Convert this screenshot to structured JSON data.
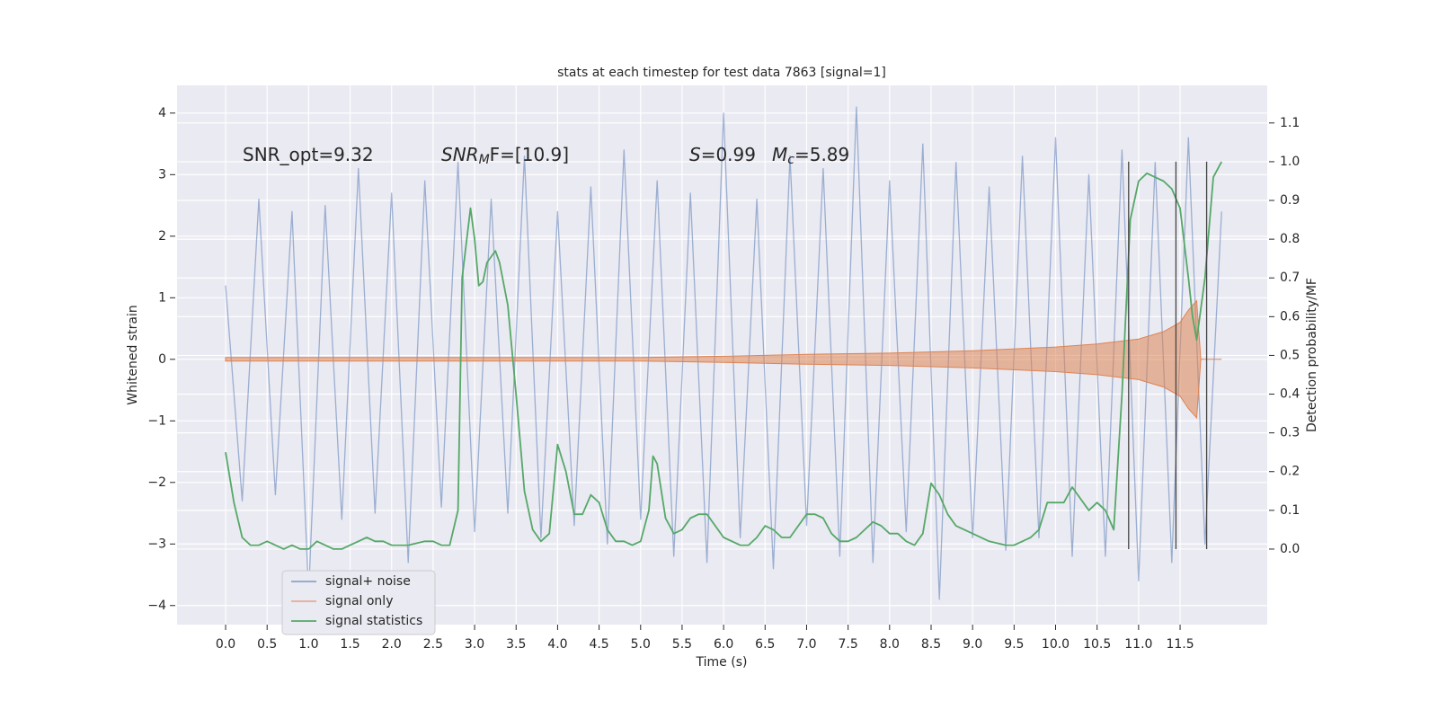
{
  "chart_data": {
    "type": "line",
    "title": "stats at each timestep for test data 7863 [signal=1]",
    "xlabel": "Time (s)",
    "ylabel": "Whitened strain",
    "y2label": "Detection probability/MF",
    "xlim": [
      -0.585,
      12.55
    ],
    "ylim": [
      -4.31,
      4.45
    ],
    "y2lim": [
      -0.195,
      1.197
    ],
    "xticks": [
      {
        "value": 0,
        "label": "0.0"
      },
      0.5,
      {
        "value": 1,
        "label": "1.0"
      },
      1.5,
      {
        "value": 2,
        "label": "2.0"
      },
      2.5,
      {
        "value": 3,
        "label": "3.0"
      },
      3.5,
      {
        "value": 4,
        "label": "4.0"
      },
      4.5,
      {
        "value": 5,
        "label": "5.0"
      },
      5.5,
      {
        "value": 6,
        "label": "6.0"
      },
      6.5,
      {
        "value": 7,
        "label": "7.0"
      },
      7.5,
      {
        "value": 8,
        "label": "8.0"
      },
      8.5,
      {
        "value": 9,
        "label": "9.0"
      },
      9.5,
      {
        "value": 10,
        "label": "10.0"
      },
      10.5,
      {
        "value": 11,
        "label": "11.0"
      },
      11.5
    ],
    "yticks": [
      {
        "value": -4,
        "label": "−4"
      },
      {
        "value": -3,
        "label": "−3"
      },
      {
        "value": -2,
        "label": "−2"
      },
      {
        "value": -1,
        "label": "−1"
      },
      0,
      1,
      2,
      3,
      4
    ],
    "y2ticks": [
      {
        "value": 0,
        "label": "0.0"
      },
      0.1,
      0.2,
      0.3,
      0.4,
      0.5,
      0.6,
      0.7,
      0.8,
      0.9,
      {
        "value": 1,
        "label": "1.0"
      },
      1.1
    ],
    "grid": true,
    "series": [
      {
        "name": "signal+ noise",
        "color": "#4c72b0",
        "kind": "line",
        "x": [
          0,
          0.2,
          0.4,
          0.6,
          0.8,
          1.0,
          1.2,
          1.4,
          1.6,
          1.8,
          2.0,
          2.2,
          2.4,
          2.6,
          2.8,
          3.0,
          3.2,
          3.4,
          3.6,
          3.8,
          4.0,
          4.2,
          4.4,
          4.6,
          4.8,
          5.0,
          5.2,
          5.4,
          5.6,
          5.8,
          6.0,
          6.2,
          6.4,
          6.6,
          6.8,
          7.0,
          7.2,
          7.4,
          7.6,
          7.8,
          8.0,
          8.2,
          8.4,
          8.6,
          8.8,
          9.0,
          9.2,
          9.4,
          9.6,
          9.8,
          10.0,
          10.2,
          10.4,
          10.6,
          10.8,
          11.0,
          11.2,
          11.4,
          11.6,
          11.8,
          12.0
        ],
        "values": [
          1.2,
          -2.3,
          2.6,
          -2.2,
          2.4,
          -3.8,
          2.5,
          -2.6,
          3.1,
          -2.5,
          2.7,
          -3.3,
          2.9,
          -2.4,
          3.2,
          -2.8,
          2.6,
          -2.5,
          3.3,
          -2.9,
          2.4,
          -2.7,
          2.8,
          -3.0,
          3.4,
          -2.6,
          2.9,
          -3.2,
          2.7,
          -3.3,
          4.0,
          -2.9,
          2.6,
          -3.4,
          3.3,
          -2.7,
          3.1,
          -3.2,
          4.1,
          -3.3,
          2.9,
          -2.8,
          3.5,
          -3.9,
          3.2,
          -2.9,
          2.8,
          -3.1,
          3.3,
          -2.9,
          3.6,
          -3.2,
          3.0,
          -3.2,
          3.4,
          -3.6,
          3.2,
          -3.3,
          3.6,
          -3.0,
          2.4
        ]
      },
      {
        "name": "signal only",
        "color": "#dd8452",
        "kind": "envelope",
        "x": [
          0,
          5,
          6,
          7,
          8,
          9,
          10,
          10.5,
          11,
          11.3,
          11.5,
          11.6,
          11.7,
          11.75,
          12.0
        ],
        "values": [
          0.03,
          0.03,
          0.05,
          0.08,
          0.1,
          0.14,
          0.2,
          0.25,
          0.33,
          0.45,
          0.6,
          0.8,
          0.95,
          0,
          0
        ]
      },
      {
        "name": "signal statistics",
        "color": "#55a868",
        "kind": "line",
        "axis": "y2",
        "x": [
          0,
          0.1,
          0.2,
          0.3,
          0.4,
          0.5,
          0.6,
          0.7,
          0.8,
          0.9,
          1.0,
          1.1,
          1.2,
          1.3,
          1.4,
          1.5,
          1.6,
          1.7,
          1.8,
          1.9,
          2.0,
          2.2,
          2.4,
          2.5,
          2.6,
          2.7,
          2.8,
          2.85,
          2.95,
          3.0,
          3.05,
          3.1,
          3.15,
          3.25,
          3.3,
          3.4,
          3.5,
          3.6,
          3.7,
          3.8,
          3.9,
          4.0,
          4.1,
          4.2,
          4.3,
          4.4,
          4.5,
          4.6,
          4.7,
          4.8,
          4.9,
          5.0,
          5.1,
          5.15,
          5.2,
          5.3,
          5.4,
          5.5,
          5.6,
          5.7,
          5.8,
          5.9,
          6.0,
          6.2,
          6.3,
          6.4,
          6.5,
          6.6,
          6.7,
          6.8,
          6.9,
          7.0,
          7.1,
          7.2,
          7.3,
          7.4,
          7.5,
          7.6,
          7.7,
          7.8,
          7.9,
          8.0,
          8.1,
          8.2,
          8.3,
          8.4,
          8.5,
          8.6,
          8.7,
          8.8,
          9.0,
          9.2,
          9.4,
          9.5,
          9.6,
          9.7,
          9.8,
          9.9,
          10.0,
          10.1,
          10.2,
          10.3,
          10.4,
          10.5,
          10.6,
          10.7,
          10.8,
          10.9,
          11.0,
          11.1,
          11.2,
          11.3,
          11.4,
          11.5,
          11.6,
          11.65,
          11.7,
          11.8,
          11.9,
          12.0
        ],
        "values": [
          0.25,
          0.12,
          0.03,
          0.01,
          0.01,
          0.02,
          0.01,
          0.0,
          0.01,
          0.0,
          0.0,
          0.02,
          0.01,
          0.0,
          0.0,
          0.01,
          0.02,
          0.03,
          0.02,
          0.02,
          0.01,
          0.01,
          0.02,
          0.02,
          0.01,
          0.01,
          0.1,
          0.7,
          0.88,
          0.8,
          0.68,
          0.69,
          0.74,
          0.77,
          0.74,
          0.63,
          0.4,
          0.15,
          0.05,
          0.02,
          0.04,
          0.27,
          0.2,
          0.09,
          0.09,
          0.14,
          0.12,
          0.05,
          0.02,
          0.02,
          0.01,
          0.02,
          0.1,
          0.24,
          0.22,
          0.08,
          0.04,
          0.05,
          0.08,
          0.09,
          0.09,
          0.06,
          0.03,
          0.01,
          0.01,
          0.03,
          0.06,
          0.05,
          0.03,
          0.03,
          0.06,
          0.09,
          0.09,
          0.08,
          0.04,
          0.02,
          0.02,
          0.03,
          0.05,
          0.07,
          0.06,
          0.04,
          0.04,
          0.02,
          0.01,
          0.04,
          0.17,
          0.14,
          0.09,
          0.06,
          0.04,
          0.02,
          0.01,
          0.01,
          0.02,
          0.03,
          0.05,
          0.12,
          0.12,
          0.12,
          0.16,
          0.13,
          0.1,
          0.12,
          0.1,
          0.05,
          0.4,
          0.85,
          0.95,
          0.97,
          0.96,
          0.95,
          0.93,
          0.88,
          0.7,
          0.6,
          0.54,
          0.7,
          0.96,
          1.0
        ]
      }
    ],
    "vlines": [
      10.88,
      11.45,
      11.82
    ],
    "vline_ylim": [
      0,
      1.0
    ],
    "annotations": [
      {
        "parts": [
          {
            "text": "SNR_opt=9.32"
          }
        ]
      },
      {
        "parts": [
          {
            "text": "SNR",
            "italic": true
          },
          {
            "text": "M",
            "italic": true,
            "sub": true
          },
          {
            "text": "F=[10.9]"
          }
        ]
      },
      {
        "parts": [
          {
            "text": "S",
            "italic": true
          },
          {
            "text": "=0.99"
          }
        ]
      },
      {
        "parts": [
          {
            "text": "M",
            "italic": true
          },
          {
            "text": "c",
            "italic": true,
            "sub": true
          },
          {
            "text": "=5.89"
          }
        ]
      }
    ]
  }
}
